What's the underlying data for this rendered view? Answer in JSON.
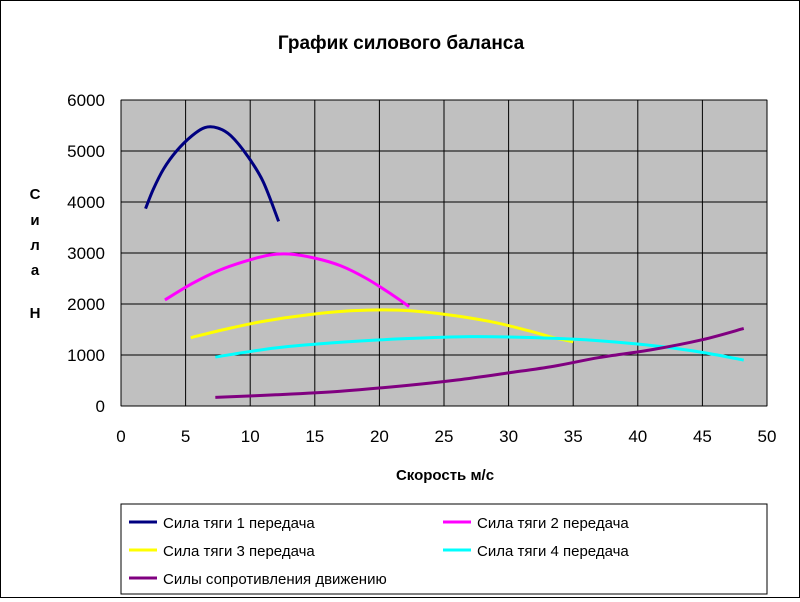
{
  "chart_data": {
    "type": "line",
    "title": "График силового баланса",
    "xlabel": "Скорость м/с",
    "ylabel_lines": [
      "С",
      "и",
      "л",
      "а",
      "Н"
    ],
    "xlim": [
      0,
      50
    ],
    "ylim": [
      0,
      6000
    ],
    "x_ticks": [
      0,
      5,
      10,
      15,
      20,
      25,
      30,
      35,
      40,
      45,
      50
    ],
    "y_ticks": [
      0,
      1000,
      2000,
      3000,
      4000,
      5000,
      6000
    ],
    "grid": true,
    "plot_background": "#c0c0c0",
    "legend_position": "bottom",
    "series": [
      {
        "name": "Сила тяги 1 передача",
        "color": "#000080",
        "points": [
          [
            1.9,
            3870
          ],
          [
            2.5,
            4250
          ],
          [
            3.3,
            4650
          ],
          [
            4.3,
            5000
          ],
          [
            5.5,
            5300
          ],
          [
            6.5,
            5460
          ],
          [
            7.5,
            5450
          ],
          [
            8.5,
            5300
          ],
          [
            9.8,
            4900
          ],
          [
            11.0,
            4400
          ],
          [
            12.2,
            3620
          ]
        ]
      },
      {
        "name": "Сила тяги 2 передача",
        "color": "#ff00ff",
        "points": [
          [
            3.4,
            2080
          ],
          [
            5.5,
            2400
          ],
          [
            7.5,
            2650
          ],
          [
            9.5,
            2830
          ],
          [
            11.5,
            2960
          ],
          [
            13.0,
            2980
          ],
          [
            15.0,
            2900
          ],
          [
            17.0,
            2750
          ],
          [
            19.0,
            2500
          ],
          [
            21.0,
            2180
          ],
          [
            22.3,
            1950
          ]
        ]
      },
      {
        "name": "Сила тяги 3 передача",
        "color": "#ffff00",
        "points": [
          [
            5.4,
            1340
          ],
          [
            8.0,
            1500
          ],
          [
            11.0,
            1660
          ],
          [
            14.5,
            1790
          ],
          [
            18.0,
            1870
          ],
          [
            21.5,
            1880
          ],
          [
            25.0,
            1800
          ],
          [
            28.5,
            1660
          ],
          [
            31.5,
            1480
          ],
          [
            33.5,
            1340
          ],
          [
            35.0,
            1260
          ]
        ]
      },
      {
        "name": "Сила тяги 4 передача",
        "color": "#00ffff",
        "points": [
          [
            7.3,
            960
          ],
          [
            12.0,
            1140
          ],
          [
            17.0,
            1250
          ],
          [
            22.0,
            1320
          ],
          [
            27.0,
            1360
          ],
          [
            32.0,
            1340
          ],
          [
            37.0,
            1280
          ],
          [
            42.0,
            1160
          ],
          [
            45.5,
            1030
          ],
          [
            48.2,
            900
          ]
        ]
      },
      {
        "name": "Силы сопротивления движению",
        "color": "#800080",
        "points": [
          [
            7.3,
            170
          ],
          [
            12.0,
            220
          ],
          [
            17.0,
            290
          ],
          [
            22.0,
            400
          ],
          [
            26.0,
            510
          ],
          [
            30.0,
            650
          ],
          [
            33.5,
            780
          ],
          [
            37.0,
            950
          ],
          [
            41.0,
            1100
          ],
          [
            45.0,
            1300
          ],
          [
            48.2,
            1520
          ]
        ]
      }
    ]
  }
}
